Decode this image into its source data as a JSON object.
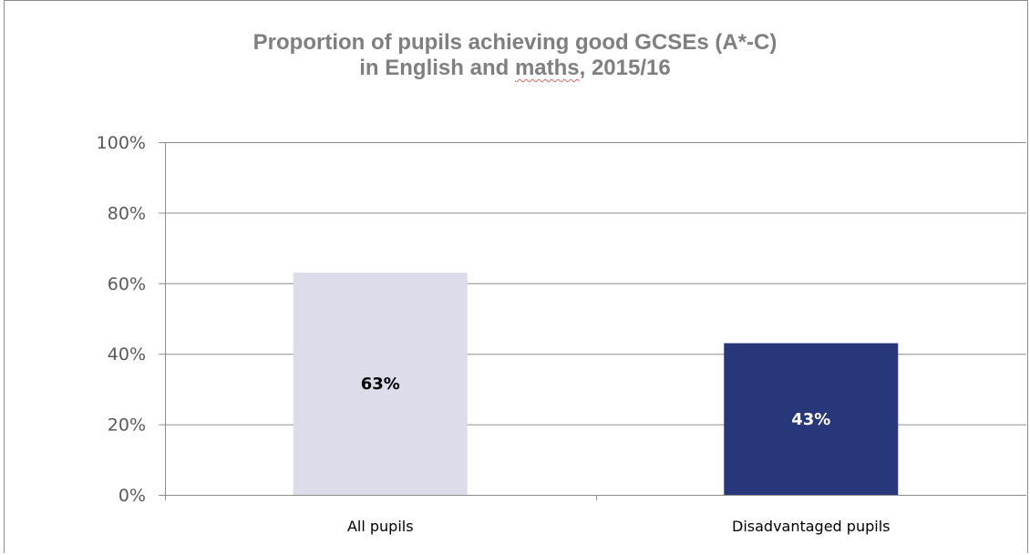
{
  "chart_data": {
    "type": "bar",
    "title": {
      "line1": "Proportion of pupils achieving good GCSEs (A*-C)",
      "line2_prefix": "in English and ",
      "line2_underlined": "maths",
      "line2_suffix": ", 2015/16"
    },
    "categories": [
      "All pupils",
      "Disadvantaged pupils"
    ],
    "values": [
      63,
      43
    ],
    "data_labels": [
      "63%",
      "43%"
    ],
    "bar_colors": [
      "#dcdcea",
      "#283779"
    ],
    "data_label_colors": [
      "#000000",
      "#ffffff"
    ],
    "ylim": [
      0,
      100
    ],
    "yticks": [
      0,
      20,
      40,
      60,
      80,
      100
    ],
    "ytick_labels": [
      "0%",
      "20%",
      "40%",
      "60%",
      "80%",
      "100%"
    ],
    "grid": true,
    "legend": "none",
    "xlabel": "",
    "ylabel": ""
  }
}
